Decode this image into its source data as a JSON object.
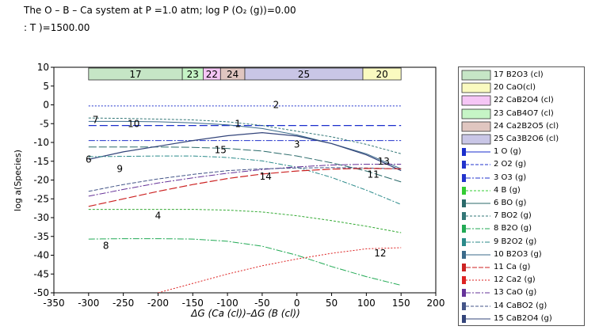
{
  "title": {
    "line1": "The O – B – Ca system at P =1.0 atm; log P (O₂ (g))=0.00",
    "line2": ": T )=1500.00"
  },
  "chart_data": {
    "type": "line",
    "xlabel": "ΔG (Ca (cl))–ΔG (B (cl))",
    "ylabel": "log a(Species)",
    "xlim": [
      -350,
      200
    ],
    "ylim": [
      -50,
      10
    ],
    "xticks": [
      -350,
      -300,
      -250,
      -200,
      -150,
      -100,
      -50,
      0,
      50,
      100,
      150,
      200
    ],
    "yticks": [
      10,
      5,
      0,
      -5,
      -10,
      -15,
      -20,
      -25,
      -30,
      -35,
      -40,
      -45,
      -50
    ],
    "grid": false,
    "legend_position": "right",
    "phase_bands": [
      {
        "label": "17",
        "x0": -300,
        "x1": -165,
        "color": "#c6e6c6"
      },
      {
        "label": "23",
        "x0": -165,
        "x1": -135,
        "color": "#c6f5c6"
      },
      {
        "label": "22",
        "x0": -135,
        "x1": -110,
        "color": "#f5c6f5"
      },
      {
        "label": "24",
        "x0": -110,
        "x1": -75,
        "color": "#e0c6c0"
      },
      {
        "label": "25",
        "x0": -75,
        "x1": 95,
        "color": "#c9c6e6"
      },
      {
        "label": "20",
        "x0": 95,
        "x1": 150,
        "color": "#fafac0"
      }
    ],
    "series": [
      {
        "id": "2",
        "color": "#2233cc",
        "dash": "2,2",
        "width": 1,
        "label_at": [
          -30,
          0
        ],
        "x": [
          -300,
          -200,
          -100,
          0,
          100,
          150
        ],
        "y": [
          -0.3,
          -0.3,
          -0.3,
          -0.3,
          -0.3,
          -0.3
        ]
      },
      {
        "id": "1",
        "color": "#1a2ecc",
        "dash": "10,4",
        "width": 1.2,
        "label_at": [
          -85,
          -5
        ],
        "x": [
          -300,
          -250,
          -200,
          -150,
          -100,
          -50,
          0,
          50,
          100,
          150
        ],
        "y": [
          -5.5,
          -5.5,
          -5.5,
          -5.5,
          -5.5,
          -5.5,
          -5.5,
          -5.5,
          -5.5,
          -5.5
        ]
      },
      {
        "id": "3",
        "color": "#2233cc",
        "dash": "8,2,2,2",
        "width": 1,
        "label_at": [
          0,
          -10.5
        ],
        "x": [
          -300,
          -200,
          -100,
          0,
          100,
          150
        ],
        "y": [
          -9.5,
          -9.5,
          -9.5,
          -9.5,
          -9.5,
          -9.5
        ]
      },
      {
        "id": "7",
        "color": "#337777",
        "dash": "3,2",
        "width": 1,
        "label_at": [
          -290,
          -4
        ],
        "x": [
          -300,
          -250,
          -200,
          -150,
          -100,
          -50,
          0,
          50,
          100,
          150
        ],
        "y": [
          -3.5,
          -3.6,
          -3.8,
          -4,
          -4.5,
          -5.5,
          -7,
          -8.5,
          -10.5,
          -13
        ]
      },
      {
        "id": "10",
        "color": "#3a6a8a",
        "dash": "",
        "width": 1,
        "label_at": [
          -235,
          -5
        ],
        "x": [
          -300,
          -250,
          -200,
          -150,
          -100,
          -50,
          0,
          50,
          100,
          150
        ],
        "y": [
          -4.4,
          -4.4,
          -4.5,
          -4.8,
          -5.3,
          -6.3,
          -8,
          -10.3,
          -13,
          -17
        ]
      },
      {
        "id": "6",
        "color": "#2a6a6a",
        "dash": "10,3",
        "width": 1,
        "label_at": [
          -300,
          -14.5
        ],
        "x": [
          -300,
          -250,
          -200,
          -150,
          -100,
          -50,
          0,
          50,
          100,
          150
        ],
        "y": [
          -11.2,
          -11.2,
          -11.2,
          -11.3,
          -11.6,
          -12.3,
          -13.6,
          -15.4,
          -17.6,
          -20.5
        ]
      },
      {
        "id": "15",
        "color": "#33447a",
        "dash": "",
        "width": 1.2,
        "label_at": [
          -110,
          -12
        ],
        "x": [
          -300,
          -250,
          -200,
          -150,
          -100,
          -50,
          0,
          50,
          100,
          150
        ],
        "y": [
          -14.5,
          -12.5,
          -11,
          -9.5,
          -8.2,
          -7.4,
          -8.3,
          -10.3,
          -13.3,
          -17.5
        ]
      },
      {
        "id": "9",
        "color": "#2a8a8a",
        "dash": "6,2,2,2",
        "width": 1,
        "label_at": [
          -255,
          -17
        ],
        "x": [
          -300,
          -250,
          -200,
          -150,
          -100,
          -50,
          0,
          50,
          100,
          150
        ],
        "y": [
          -13.8,
          -13.7,
          -13.6,
          -13.6,
          -14,
          -14.9,
          -16.6,
          -19.3,
          -22.7,
          -26.5
        ]
      },
      {
        "id": "13",
        "color": "#663399",
        "dash": "8,2,2,2",
        "width": 1,
        "label_at": [
          125,
          -15
        ],
        "x": [
          -300,
          -250,
          -200,
          -150,
          -100,
          -50,
          0,
          50,
          100,
          150
        ],
        "y": [
          -24.3,
          -22.5,
          -20.8,
          -19.4,
          -18.2,
          -17.2,
          -16.5,
          -16,
          -15.8,
          -15.8
        ]
      },
      {
        "id": "14",
        "color": "#445588",
        "dash": "5,2",
        "width": 1,
        "label_at": [
          -45,
          -19
        ],
        "x": [
          -300,
          -250,
          -200,
          -150,
          -100,
          -50,
          0,
          50,
          100,
          150
        ],
        "y": [
          -23,
          -21.2,
          -19.7,
          -18.5,
          -17.5,
          -17,
          -16.8,
          -16.7,
          -16.8,
          -17
        ]
      },
      {
        "id": "11",
        "color": "#cc2222",
        "dash": "10,3",
        "width": 1.2,
        "label_at": [
          110,
          -18.5
        ],
        "x": [
          -300,
          -250,
          -200,
          -150,
          -100,
          -50,
          0,
          50,
          100,
          150
        ],
        "y": [
          -27,
          -25,
          -23,
          -21.2,
          -19.6,
          -18.4,
          -17.6,
          -17.1,
          -16.9,
          -17
        ]
      },
      {
        "id": "4",
        "color": "#33aa33",
        "dash": "3,2",
        "width": 1,
        "label_at": [
          -200,
          -29.5
        ],
        "x": [
          -300,
          -250,
          -200,
          -150,
          -100,
          -50,
          0,
          50,
          100,
          150
        ],
        "y": [
          -27.8,
          -27.8,
          -27.8,
          -27.8,
          -28,
          -28.5,
          -29.5,
          -30.8,
          -32.3,
          -34
        ]
      },
      {
        "id": "8",
        "color": "#22aa55",
        "dash": "8,2,2,2",
        "width": 1,
        "label_at": [
          -275,
          -37.5
        ],
        "x": [
          -300,
          -250,
          -200,
          -150,
          -100,
          -50,
          0,
          50,
          100,
          150
        ],
        "y": [
          -35.7,
          -35.6,
          -35.6,
          -35.7,
          -36.3,
          -37.6,
          -40,
          -43,
          -45.7,
          -48
        ]
      },
      {
        "id": "12",
        "color": "#dd2222",
        "dash": "2,2",
        "width": 1,
        "label_at": [
          120,
          -39.5
        ],
        "x": [
          -200,
          -150,
          -100,
          -50,
          0,
          50,
          100,
          150
        ],
        "y": [
          -50,
          -47.5,
          -45,
          -42.8,
          -41,
          -39.5,
          -38.3,
          -38
        ]
      }
    ]
  },
  "legend": [
    {
      "label": "17 B2O3 (cl)",
      "kind": "box",
      "color": "#c6e6c6"
    },
    {
      "label": "20 CaO(cl)",
      "kind": "box",
      "color": "#fafac0"
    },
    {
      "label": "22 CaB2O4 (cl)",
      "kind": "box",
      "color": "#f5c6f5"
    },
    {
      "label": "23 CaB4O7 (cl)",
      "kind": "box",
      "color": "#c6f5c6"
    },
    {
      "label": "24 Ca2B2O5 (cl)",
      "kind": "box",
      "color": "#e0c6c0"
    },
    {
      "label": "25 Ca3B2O6 (cl)",
      "kind": "box",
      "color": "#c9c6e6"
    },
    {
      "label": "1 O (g)",
      "kind": "line",
      "color": "#1a2ecc",
      "dash": ""
    },
    {
      "label": "2 O2 (g)",
      "kind": "line",
      "color": "#2233cc",
      "dash": "4,2"
    },
    {
      "label": "3 O3 (g)",
      "kind": "line",
      "color": "#2233cc",
      "dash": "6,2,2,2"
    },
    {
      "label": "4 B (g)",
      "kind": "line",
      "color": "#33cc33",
      "dash": "3,2"
    },
    {
      "label": "6 BO (g)",
      "kind": "line",
      "color": "#2a6a6a",
      "dash": ""
    },
    {
      "label": "7 BO2 (g)",
      "kind": "line",
      "color": "#337777",
      "dash": "3,2"
    },
    {
      "label": "8 B2O (g)",
      "kind": "line",
      "color": "#22aa55",
      "dash": "6,2,2,2"
    },
    {
      "label": "9 B2O2 (g)",
      "kind": "line",
      "color": "#2a8a8a",
      "dash": "6,2,2,2"
    },
    {
      "label": "10 B2O3 (g)",
      "kind": "line",
      "color": "#3a6a8a",
      "dash": ""
    },
    {
      "label": "11 Ca (g)",
      "kind": "line",
      "color": "#cc2222",
      "dash": "6,2"
    },
    {
      "label": "12 Ca2 (g)",
      "kind": "line",
      "color": "#dd2222",
      "dash": "2,2"
    },
    {
      "label": "13 CaO (g)",
      "kind": "line",
      "color": "#663399",
      "dash": "6,2,2,2"
    },
    {
      "label": "14 CaBO2 (g)",
      "kind": "line",
      "color": "#445588",
      "dash": "4,2"
    },
    {
      "label": "15 CaB2O4 (g)",
      "kind": "line",
      "color": "#33447a",
      "dash": ""
    }
  ]
}
